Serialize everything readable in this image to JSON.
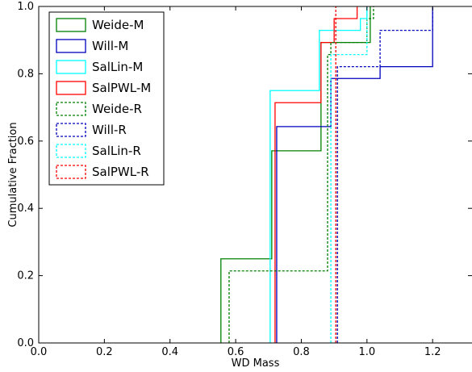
{
  "chart_data": {
    "type": "line",
    "subtype": "cumulative-step",
    "xlabel": "WD Mass",
    "ylabel": "Cumulative Fraction",
    "xlim": [
      0.0,
      1.32
    ],
    "ylim": [
      0.0,
      1.0
    ],
    "xticks": [
      "0.0",
      "0.2",
      "0.4",
      "0.6",
      "0.8",
      "1.0",
      "1.2"
    ],
    "xtick_values": [
      0.0,
      0.2,
      0.4,
      0.6,
      0.8,
      1.0,
      1.2
    ],
    "yticks": [
      "0.0",
      "0.2",
      "0.4",
      "0.6",
      "0.8",
      "1.0"
    ],
    "ytick_values": [
      0.0,
      0.2,
      0.4,
      0.6,
      0.8,
      1.0
    ],
    "grid": false,
    "legend_position": "upper-left",
    "series": [
      {
        "name": "Weide-M",
        "color": "#008000",
        "dash": "solid",
        "x": [
          0.555,
          0.71,
          0.86,
          1.01
        ],
        "y": [
          0.25,
          0.571,
          0.893,
          1.0
        ]
      },
      {
        "name": "Will-M",
        "color": "#0000bf",
        "dash": "solid",
        "x": [
          0.725,
          0.89,
          1.04,
          1.2
        ],
        "y": [
          0.643,
          0.786,
          0.821,
          1.0
        ]
      },
      {
        "name": "SalLin-M",
        "color": "#00ffff",
        "dash": "solid",
        "x": [
          0.705,
          0.855,
          0.98,
          1.0
        ],
        "y": [
          0.75,
          0.929,
          0.964,
          1.0
        ]
      },
      {
        "name": "SalPWL-M",
        "color": "#ff0000",
        "dash": "solid",
        "x": [
          0.72,
          0.86,
          0.9,
          0.97
        ],
        "y": [
          0.714,
          0.893,
          0.964,
          1.0
        ]
      },
      {
        "name": "Weide-R",
        "color": "#008000",
        "dash": "dotted",
        "x": [
          0.58,
          0.88,
          0.89,
          1.0,
          1.02
        ],
        "y": [
          0.214,
          0.857,
          0.893,
          0.964,
          1.0
        ]
      },
      {
        "name": "Will-R",
        "color": "#0000bf",
        "dash": "dotted",
        "x": [
          0.91,
          1.04,
          1.2
        ],
        "y": [
          0.821,
          0.929,
          1.0
        ]
      },
      {
        "name": "SalLin-R",
        "color": "#00ffff",
        "dash": "dotted",
        "x": [
          0.89,
          1.0
        ],
        "y": [
          0.857,
          1.0
        ]
      },
      {
        "name": "SalPWL-R",
        "color": "#ff0000",
        "dash": "dotted",
        "x": [
          0.905
        ],
        "y": [
          1.0
        ]
      }
    ]
  }
}
